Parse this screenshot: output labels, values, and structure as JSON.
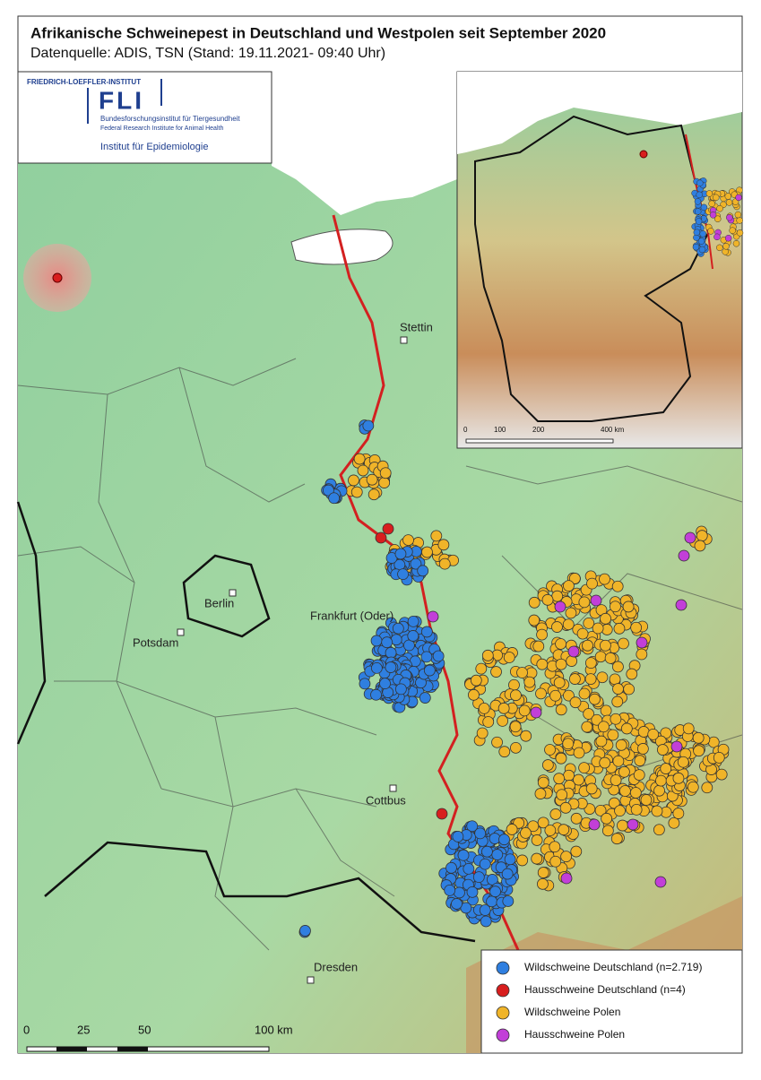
{
  "header": {
    "title": "Afrikanische Schweinepest in Deutschland und Westpolen seit September 2020",
    "subtitle": "Datenquelle: ADIS, TSN (Stand: 19.11.2021- 09:40 Uhr)"
  },
  "logo": {
    "institute": "FRIEDRICH-LOEFFLER-INSTITUT",
    "acronym": "FLI",
    "name_de": "Bundesforschungsinstitut für Tiergesundheit",
    "name_en": "Federal Research Institute for Animal Health",
    "department": "Institut für Epidemiologie"
  },
  "cities": [
    "Stettin",
    "Berlin",
    "Frankfurt (Oder)",
    "Potsdam",
    "Cottbus",
    "Dresden"
  ],
  "scale_bar": [
    "0",
    "25",
    "50",
    "100 km"
  ],
  "inset_scale_bar": [
    "0",
    "100",
    "200",
    "400 km"
  ],
  "legend": {
    "items": [
      {
        "label": "Wildschweine Deutschland (n=2.719)",
        "color": "#2f7fe0"
      },
      {
        "label": "Hausschweine Deutschland (n=4)",
        "color": "#d81e1e"
      },
      {
        "label": "Wildschweine Polen",
        "color": "#f0b429"
      },
      {
        "label": "Hausschweine Polen",
        "color": "#c23fd8"
      }
    ]
  }
}
